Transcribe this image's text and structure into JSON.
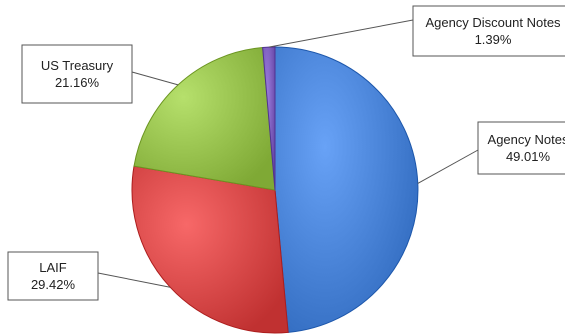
{
  "chart_data": {
    "type": "pie",
    "title": "",
    "slices": [
      {
        "label": "Agency Notes",
        "value": 49.01,
        "display": "49.01%",
        "color": "#4a84d8"
      },
      {
        "label": "LAIF",
        "value": 29.42,
        "display": "29.42%",
        "color": "#d94a4a"
      },
      {
        "label": "US Treasury",
        "value": 21.16,
        "display": "21.16%",
        "color": "#98c24e"
      },
      {
        "label": "Agency Discount Notes",
        "value": 1.39,
        "display": "1.39%",
        "color": "#7e5fbf"
      }
    ],
    "legend": "none",
    "data_labels": "callouts"
  }
}
